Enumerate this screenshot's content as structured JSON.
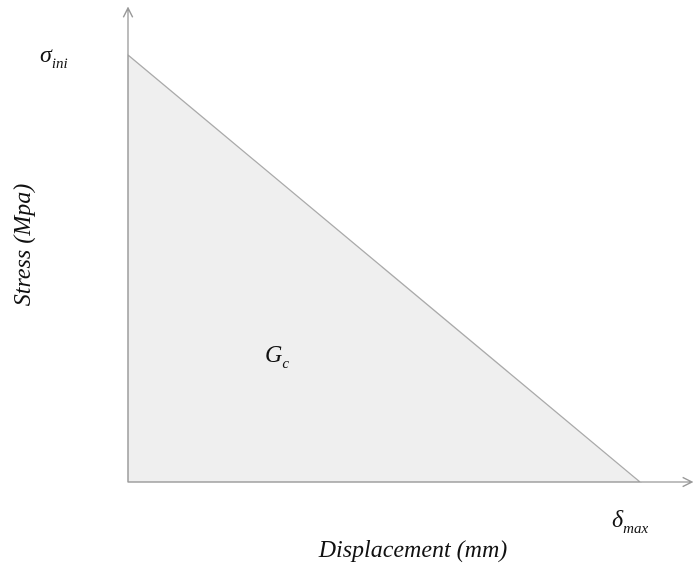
{
  "y_axis": {
    "label": "Stress (Mpa)",
    "tick": {
      "symbol": "σ",
      "subscript": "ini"
    }
  },
  "x_axis": {
    "label": "Displacement (mm)",
    "tick": {
      "symbol": "δ",
      "subscript": "max"
    }
  },
  "area": {
    "symbol": "G",
    "subscript": "c"
  }
}
